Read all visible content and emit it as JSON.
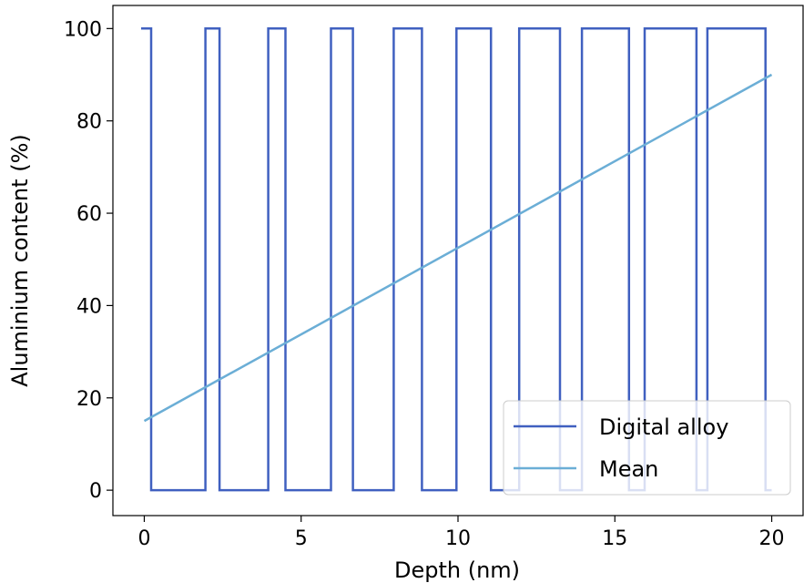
{
  "chart_data": {
    "type": "line",
    "title": "",
    "xlabel": "Depth (nm)",
    "ylabel": "Aluminium content (%)",
    "xlim": [
      -1,
      21
    ],
    "ylim": [
      -5.5,
      105
    ],
    "x_ticks": [
      0,
      5,
      10,
      15,
      20
    ],
    "y_ticks": [
      0,
      20,
      40,
      60,
      80,
      100
    ],
    "grid": false,
    "legend_position": "lower right",
    "series": [
      {
        "name": "Digital alloy",
        "color": "#4060C0",
        "step": true,
        "x": [
          -0.1,
          0.22,
          0.22,
          1.95,
          1.95,
          2.4,
          2.4,
          3.95,
          3.95,
          4.5,
          4.5,
          5.95,
          5.95,
          6.65,
          6.65,
          7.95,
          7.95,
          8.85,
          8.85,
          9.95,
          9.95,
          11.05,
          11.05,
          11.95,
          11.95,
          13.25,
          13.25,
          13.95,
          13.95,
          15.45,
          15.45,
          15.95,
          15.95,
          17.6,
          17.6,
          17.95,
          17.95,
          19.8,
          19.8,
          20.0
        ],
        "y": [
          100,
          100,
          0,
          0,
          100,
          100,
          0,
          0,
          100,
          100,
          0,
          0,
          100,
          100,
          0,
          0,
          100,
          100,
          0,
          0,
          100,
          100,
          0,
          0,
          100,
          100,
          0,
          0,
          100,
          100,
          0,
          0,
          100,
          100,
          0,
          0,
          100,
          100,
          0,
          0
        ]
      },
      {
        "name": "Mean",
        "color": "#6BAED6",
        "x": [
          0,
          20
        ],
        "y": [
          15,
          90
        ]
      }
    ]
  }
}
